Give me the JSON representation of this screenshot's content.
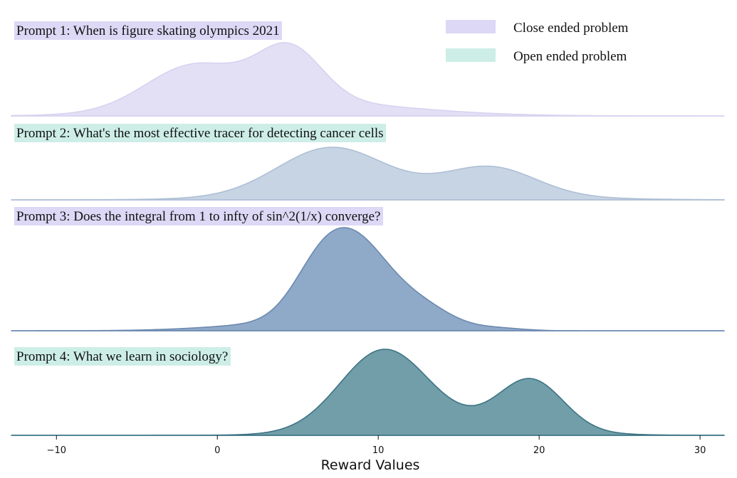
{
  "legend": {
    "items": [
      {
        "label": "Close ended problem",
        "color": "#dcd8f5"
      },
      {
        "label": "Open ended problem",
        "color": "#cdeee6"
      }
    ]
  },
  "chart_data": {
    "type": "area",
    "subtype": "ridgeline density plot",
    "xlabel": "Reward Values",
    "xlim": [
      -12.8,
      31.5
    ],
    "xticks": [
      -10,
      0,
      10,
      20,
      30
    ],
    "xtick_labels": [
      "−10",
      "0",
      "10",
      "20",
      "30"
    ],
    "grid": false,
    "legend_position": "top-right",
    "series": [
      {
        "name": "Prompt 1: When is figure skating olympics 2021",
        "category": "Close ended problem",
        "fill": "#e3e0f6",
        "stroke": "#d6d2f0",
        "components": [
          {
            "mean": -1.5,
            "sd": 3.0,
            "weight": 0.45
          },
          {
            "mean": 4.5,
            "sd": 2.0,
            "weight": 0.55
          },
          {
            "mean": 5.0,
            "sd": 6.5,
            "weight": 0.15
          }
        ]
      },
      {
        "name": "Prompt 2:  What's the most effective tracer for detecting cancer cells",
        "category": "Open ended problem",
        "fill": "#c7d4e4",
        "stroke": "#aebfd4",
        "components": [
          {
            "mean": 7.0,
            "sd": 3.3,
            "weight": 0.6
          },
          {
            "mean": 17.0,
            "sd": 2.8,
            "weight": 0.35
          },
          {
            "mean": 12.0,
            "sd": 7.0,
            "weight": 0.1
          }
        ]
      },
      {
        "name": "Prompt 3: Does the integral from 1 to infty of sin^2(1/x) converge?",
        "category": "Close ended problem",
        "fill": "#8fa9c8",
        "stroke": "#6c89b0",
        "components": [
          {
            "mean": 6.5,
            "sd": 1.8,
            "weight": 0.35
          },
          {
            "mean": 9.0,
            "sd": 1.9,
            "weight": 0.4
          },
          {
            "mean": 12.5,
            "sd": 2.0,
            "weight": 0.15
          },
          {
            "mean": 17.5,
            "sd": 1.5,
            "weight": 0.015
          },
          {
            "mean": 5.0,
            "sd": 4.5,
            "weight": 0.05
          }
        ]
      },
      {
        "name": "Prompt 4: What we learn in sociology?",
        "category": "Open ended problem",
        "fill": "#719ea8",
        "stroke": "#3d7485",
        "components": [
          {
            "mean": 10.3,
            "sd": 2.7,
            "weight": 0.55
          },
          {
            "mean": 19.5,
            "sd": 2.0,
            "weight": 0.35
          },
          {
            "mean": 14.5,
            "sd": 5.0,
            "weight": 0.08
          }
        ]
      }
    ]
  }
}
